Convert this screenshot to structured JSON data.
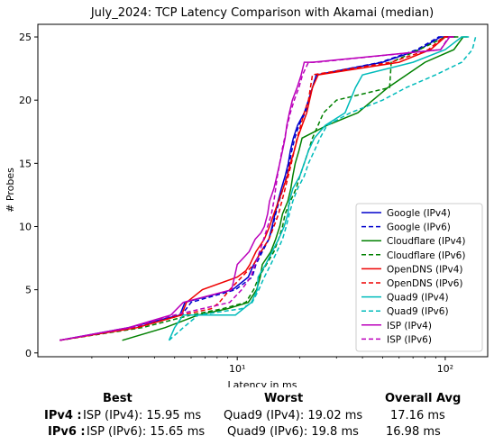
{
  "chart_data": {
    "type": "line",
    "title": "July_2024: TCP Latency Comparison with Akamai (median)",
    "xlabel": "Latency in ms",
    "ylabel": "# Probes",
    "xscale": "log",
    "xlim": [
      1.1,
      160
    ],
    "ylim": [
      -0.3,
      26
    ],
    "x_ticks": [
      10,
      100
    ],
    "x_tick_labels": [
      "10¹",
      "10²"
    ],
    "y_ticks": [
      0,
      5,
      10,
      15,
      20,
      25
    ],
    "legend_placement": "lower-right",
    "grid": false,
    "series": [
      {
        "name": "Google (IPv4)",
        "color": "#0000cc",
        "dash": "solid",
        "x": [
          1.4,
          3.0,
          5.3,
          5.6,
          9.5,
          11.3,
          12.0,
          13.0,
          14.2,
          14.7,
          15.2,
          15.7,
          16.3,
          17.0,
          17.6,
          18.0,
          18.6,
          19.5,
          21.0,
          22.0,
          23.0,
          24.0,
          50,
          75,
          95,
          103,
          108,
          112
        ],
        "y": [
          1,
          2,
          3,
          4,
          5,
          6,
          7,
          8,
          9,
          10,
          11,
          12,
          13,
          14,
          15,
          16,
          17,
          18,
          19,
          20,
          21,
          22,
          23,
          24,
          25,
          25,
          25,
          25
        ]
      },
      {
        "name": "Google (IPv6)",
        "color": "#0000cc",
        "dash": "dashed",
        "x": [
          1.4,
          3.2,
          5.4,
          6.0,
          9.8,
          11.8,
          12.3,
          13.2,
          14.2,
          14.8,
          15.3,
          15.9,
          16.6,
          17.3,
          17.8,
          18.3,
          18.9,
          19.8,
          21.2,
          22.2,
          23.0,
          24.0,
          49,
          73,
          93,
          101,
          106,
          110
        ],
        "y": [
          1,
          2,
          3,
          4,
          5,
          6,
          7,
          8,
          9,
          10,
          11,
          12,
          13,
          14,
          15,
          16,
          17,
          18,
          19,
          20,
          21,
          22,
          23,
          24,
          25,
          25,
          25,
          25
        ]
      },
      {
        "name": "Cloudflare (IPv4)",
        "color": "#008000",
        "dash": "solid",
        "x": [
          2.8,
          4.5,
          6.5,
          9.0,
          11.3,
          12.4,
          12.9,
          13.2,
          14.5,
          15.3,
          16.0,
          16.5,
          17.5,
          18.1,
          18.5,
          19.0,
          19.8,
          20.5,
          27,
          38,
          53,
          80,
          110,
          122,
          128
        ],
        "y": [
          1,
          2,
          3,
          3.5,
          4,
          5,
          6,
          7,
          8,
          9,
          10,
          11,
          12,
          13,
          14,
          15,
          16,
          17,
          18,
          19,
          21,
          23,
          24,
          25,
          25
        ]
      },
      {
        "name": "Cloudflare (IPv6)",
        "color": "#008000",
        "dash": "dashed",
        "x": [
          1.4,
          3.5,
          6.0,
          8.5,
          11.0,
          12.0,
          12.7,
          13.8,
          15.0,
          15.8,
          16.5,
          17.0,
          18.0,
          19.2,
          20.0,
          21.0,
          22.0,
          23.0,
          26,
          30,
          54,
          55,
          75,
          100,
          115,
          120
        ],
        "y": [
          1,
          2,
          3,
          3.5,
          4,
          5,
          6,
          7,
          8,
          9,
          10,
          11,
          12,
          13,
          14,
          15,
          16,
          17,
          19,
          20,
          21,
          23,
          24,
          25,
          25,
          25
        ]
      },
      {
        "name": "OpenDNS (IPv4)",
        "color": "#ee0000",
        "dash": "solid",
        "x": [
          1.4,
          3.3,
          5.4,
          5.7,
          6.8,
          10.0,
          11.0,
          11.5,
          12.3,
          13.5,
          14.3,
          15.0,
          15.8,
          16.6,
          17.4,
          18.0,
          18.8,
          19.5,
          20.5,
          21.6,
          23.0,
          24.5,
          60,
          85,
          100,
          106,
          110
        ],
        "y": [
          1,
          2,
          3,
          4,
          5,
          6,
          6.5,
          7,
          8,
          9,
          10,
          11,
          12,
          13,
          14,
          15,
          16,
          17,
          18,
          19,
          21,
          22,
          23,
          24,
          25,
          25,
          25
        ]
      },
      {
        "name": "OpenDNS (IPv6)",
        "color": "#ee0000",
        "dash": "dashed",
        "x": [
          1.4,
          3.3,
          5.4,
          7.5,
          8.2,
          9.2,
          10.5,
          12.0,
          13.0,
          14.2,
          15.0,
          15.8,
          16.4,
          17.0,
          17.6,
          18.2,
          18.8,
          19.4,
          20.2,
          21.0,
          22.0,
          23.0,
          55,
          83,
          98,
          104,
          108
        ],
        "y": [
          1,
          2,
          3,
          3.5,
          4,
          5,
          6,
          7,
          8,
          9,
          10,
          11,
          12,
          13,
          14,
          15,
          16,
          17,
          18,
          19,
          20,
          22,
          23,
          24,
          25,
          25,
          25
        ]
      },
      {
        "name": "Quad9 (IPv4)",
        "color": "#00bbbb",
        "dash": "solid",
        "x": [
          4.7,
          5.0,
          5.5,
          9.8,
          11.7,
          12.5,
          12.6,
          13.7,
          14.7,
          15.8,
          16.8,
          17.5,
          17.8,
          18.5,
          20.0,
          21.0,
          22.0,
          23.5,
          26.5,
          33.0,
          37.0,
          40.0,
          70,
          100,
          120,
          125,
          130
        ],
        "y": [
          1,
          2,
          3,
          3,
          4,
          5,
          6,
          7,
          8,
          9,
          10,
          11,
          12,
          13,
          14,
          15,
          16,
          17,
          18,
          19,
          21,
          22,
          23,
          24,
          25,
          25,
          25
        ]
      },
      {
        "name": "Quad9 (IPv6)",
        "color": "#00bbbb",
        "dash": "dashed",
        "x": [
          4.7,
          5.5,
          6.5,
          10.5,
          11.8,
          12.7,
          13.5,
          14.5,
          15.5,
          16.5,
          17.2,
          17.8,
          18.5,
          19.5,
          21.0,
          22.0,
          23.5,
          25.0,
          27.0,
          35.0,
          50.0,
          65.0,
          90,
          120,
          135,
          140
        ],
        "y": [
          1,
          2,
          3,
          3.5,
          4,
          5,
          6,
          7,
          8,
          9,
          10,
          11,
          12,
          13,
          14,
          15,
          16,
          17,
          18,
          19,
          20,
          21,
          22,
          23,
          24,
          25
        ]
      },
      {
        "name": "ISP (IPv4)",
        "color": "#bb00bb",
        "dash": "solid",
        "x": [
          1.4,
          3.0,
          4.8,
          5.5,
          9.4,
          10.0,
          11.4,
          12.2,
          13.0,
          13.5,
          14.0,
          14.3,
          15.0,
          15.5,
          16.0,
          16.5,
          17.0,
          17.3,
          17.8,
          18.4,
          19.4,
          20.3,
          21.0,
          23.0,
          95,
          105,
          108,
          110
        ],
        "y": [
          1,
          2,
          3,
          4,
          5,
          7,
          8,
          9,
          9.5,
          10,
          11,
          12,
          13,
          14,
          15,
          16,
          17,
          18,
          19,
          20,
          21,
          22,
          23,
          23,
          24,
          25,
          25,
          25
        ]
      },
      {
        "name": "ISP (IPv6)",
        "color": "#bb00bb",
        "dash": "dashed",
        "x": [
          1.4,
          3.1,
          5.0,
          9.2,
          10.5,
          11.6,
          12.2,
          12.8,
          13.4,
          14.0,
          14.6,
          15.0,
          15.3,
          15.6,
          16.0,
          16.4,
          16.9,
          17.4,
          18.0,
          18.8,
          19.8,
          20.6,
          22.0,
          24.0,
          95,
          104,
          108
        ],
        "y": [
          1,
          2,
          3,
          4,
          5,
          6,
          7,
          8,
          9,
          10,
          11,
          12,
          13,
          14,
          15,
          16,
          17,
          18,
          19,
          20,
          21,
          22,
          23,
          23,
          24,
          25,
          25
        ]
      }
    ]
  },
  "summary": {
    "headers": [
      "Best",
      "Worst",
      "Overall Avg"
    ],
    "rows": [
      {
        "label": "IPv4 :",
        "best": "ISP (IPv4): 15.95 ms",
        "worst": "Quad9 (IPv4): 19.02 ms",
        "avg": "17.16 ms"
      },
      {
        "label": "IPv6 :",
        "best": "ISP (IPv6): 15.65 ms",
        "worst": "Quad9 (IPv6): 19.8 ms",
        "avg": "16.98 ms"
      }
    ]
  }
}
